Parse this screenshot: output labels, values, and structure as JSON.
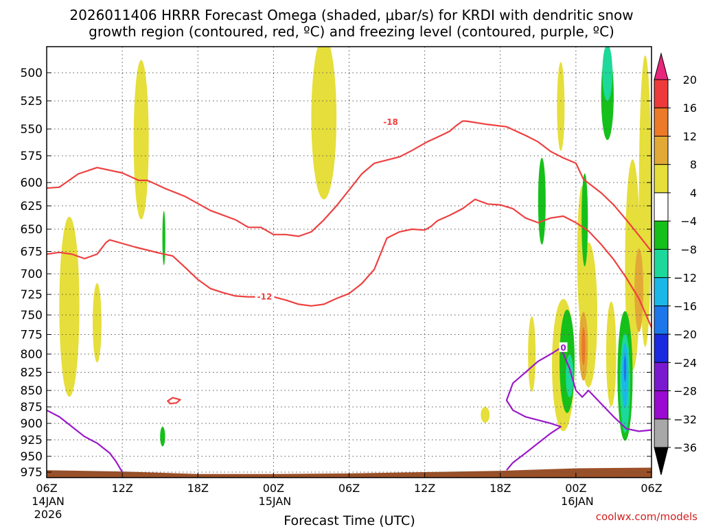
{
  "chart_data": {
    "type": "heatmap",
    "title_lines": [
      "2026011406 HRRR Forecast Omega (shaded, μbar/s) for KRDI with dendritic snow",
      "growth region (contoured, red, ºC) and freezing level (contoured, purple, ºC)"
    ],
    "xlabel": "Forecast Time (UTC)",
    "ylabel": "",
    "credit": "coolwx.com/models",
    "x_range_hours": [
      0,
      48
    ],
    "y_range_hpa": [
      488,
      990
    ],
    "y_scale": "pressure",
    "grid": true,
    "x_ticks": [
      {
        "h": 0,
        "lines": [
          "06Z",
          "14JAN",
          "2026"
        ]
      },
      {
        "h": 6,
        "lines": [
          "12Z"
        ]
      },
      {
        "h": 12,
        "lines": [
          "18Z"
        ]
      },
      {
        "h": 18,
        "lines": [
          "00Z",
          "15JAN"
        ]
      },
      {
        "h": 24,
        "lines": [
          "06Z"
        ]
      },
      {
        "h": 30,
        "lines": [
          "12Z"
        ]
      },
      {
        "h": 36,
        "lines": [
          "18Z"
        ]
      },
      {
        "h": 42,
        "lines": [
          "00Z",
          "16JAN"
        ]
      },
      {
        "h": 48,
        "lines": [
          "06Z"
        ]
      }
    ],
    "y_ticks": [
      500,
      525,
      550,
      575,
      600,
      625,
      650,
      675,
      700,
      725,
      750,
      775,
      800,
      825,
      850,
      875,
      900,
      925,
      950,
      975
    ],
    "colorbar": {
      "levels": [
        {
          "label": "20",
          "color": "#e8277c"
        },
        {
          "label": "16",
          "color": "#ee3a3a"
        },
        {
          "label": "12",
          "color": "#ec7a28"
        },
        {
          "label": "8",
          "color": "#e3a936"
        },
        {
          "label": "4",
          "color": "#e6de3a"
        },
        {
          "label": "−4",
          "color": "#ffffff"
        },
        {
          "label": "−8",
          "color": "#16c01a"
        },
        {
          "label": "−12",
          "color": "#1cd89a"
        },
        {
          "label": "−16",
          "color": "#1ab8e8"
        },
        {
          "label": "−20",
          "color": "#1c78ea"
        },
        {
          "label": "−24",
          "color": "#1a2ae0"
        },
        {
          "label": "−28",
          "color": "#7a1ad0"
        },
        {
          "label": "−32",
          "color": "#9a0ad0"
        },
        {
          "label": "−36",
          "color": "#a8a8a8"
        }
      ],
      "bottom_color": "#000000"
    },
    "colors": {
      "dgz_contour": "#ee4040",
      "freezing_contour": "#9a18c8",
      "terrain": "#9a5028",
      "grid": "#555555"
    },
    "contours": [
      {
        "label": "-18",
        "color": "dgz",
        "label_at": [
          27.3,
          544
        ],
        "closed": false,
        "points": [
          [
            0,
            606
          ],
          [
            1,
            605
          ],
          [
            2.5,
            592
          ],
          [
            4,
            586
          ],
          [
            6,
            591
          ],
          [
            7.3,
            598
          ],
          [
            8,
            598
          ],
          [
            9.5,
            607
          ],
          [
            11,
            615
          ],
          [
            13,
            630
          ],
          [
            15,
            640
          ],
          [
            16,
            648
          ],
          [
            17,
            648
          ],
          [
            18,
            656
          ],
          [
            19,
            656
          ],
          [
            20,
            658
          ],
          [
            21,
            653
          ],
          [
            22,
            640
          ],
          [
            23,
            625
          ],
          [
            24,
            608
          ],
          [
            25,
            592
          ],
          [
            26,
            582
          ],
          [
            28,
            576
          ],
          [
            29,
            570
          ],
          [
            30.2,
            562
          ],
          [
            31.3,
            556
          ],
          [
            32,
            552
          ],
          [
            32.5,
            547
          ],
          [
            33,
            543
          ],
          [
            33.3,
            543
          ],
          [
            35,
            546
          ],
          [
            36.5,
            548
          ],
          [
            38,
            556
          ],
          [
            39,
            562
          ],
          [
            40,
            571
          ],
          [
            41,
            577
          ],
          [
            42,
            582
          ],
          [
            42.6,
            597
          ],
          [
            44,
            611
          ],
          [
            45,
            624
          ],
          [
            46,
            640
          ],
          [
            47,
            657
          ],
          [
            48,
            675
          ]
        ]
      },
      {
        "label": "-12",
        "color": "dgz",
        "label_at": [
          17.3,
          728
        ],
        "closed": false,
        "points": [
          [
            0,
            678
          ],
          [
            1,
            676
          ],
          [
            2,
            678
          ],
          [
            3,
            683
          ],
          [
            4,
            678
          ],
          [
            4.7,
            665
          ],
          [
            5,
            662
          ],
          [
            7,
            670
          ],
          [
            9,
            677
          ],
          [
            10,
            680
          ],
          [
            11,
            693
          ],
          [
            12,
            707
          ],
          [
            13,
            718
          ],
          [
            14,
            723
          ],
          [
            15,
            727
          ],
          [
            16,
            728
          ],
          [
            18,
            728
          ],
          [
            19,
            732
          ],
          [
            20,
            737
          ],
          [
            21,
            739
          ],
          [
            22,
            737
          ],
          [
            23,
            730
          ],
          [
            24,
            724
          ],
          [
            25,
            712
          ],
          [
            26,
            695
          ],
          [
            27,
            660
          ],
          [
            28,
            653
          ],
          [
            29,
            650
          ],
          [
            30,
            651
          ],
          [
            30.5,
            647
          ],
          [
            31,
            641
          ],
          [
            32,
            635
          ],
          [
            33,
            628
          ],
          [
            34,
            618
          ],
          [
            35,
            623
          ],
          [
            36,
            624
          ],
          [
            37,
            628
          ],
          [
            38,
            638
          ],
          [
            39,
            643
          ],
          [
            40,
            638
          ],
          [
            41,
            636
          ],
          [
            42,
            643
          ],
          [
            43,
            652
          ],
          [
            44,
            667
          ],
          [
            45,
            684
          ],
          [
            46,
            705
          ],
          [
            47,
            730
          ],
          [
            48,
            766
          ]
        ]
      },
      {
        "label": "",
        "color": "dgz",
        "closed": true,
        "points": [
          [
            9.6,
            866
          ],
          [
            10.0,
            861
          ],
          [
            10.6,
            864
          ],
          [
            10.3,
            869
          ],
          [
            9.8,
            870
          ]
        ]
      },
      {
        "label": "0",
        "color": "freezing",
        "label_at": [
          41,
          792
        ],
        "closed": false,
        "points": [
          [
            0,
            880
          ],
          [
            1,
            890
          ],
          [
            2,
            905
          ],
          [
            3,
            920
          ],
          [
            4,
            930
          ],
          [
            5,
            945
          ],
          [
            5.5,
            958
          ],
          [
            6,
            975
          ]
        ]
      },
      {
        "label": "",
        "color": "freezing",
        "closed": false,
        "points": [
          [
            36.5,
            972
          ],
          [
            37,
            960
          ],
          [
            38,
            945
          ],
          [
            39,
            930
          ],
          [
            40,
            915
          ],
          [
            40.8,
            905
          ],
          [
            40,
            900
          ],
          [
            39,
            895
          ],
          [
            38,
            890
          ],
          [
            37,
            880
          ],
          [
            36.5,
            865
          ],
          [
            37,
            840
          ],
          [
            38,
            825
          ],
          [
            39,
            810
          ],
          [
            40,
            800
          ],
          [
            40.8,
            792
          ],
          [
            41.5,
            820
          ],
          [
            42,
            850
          ],
          [
            42.5,
            860
          ],
          [
            43,
            850
          ],
          [
            44,
            870
          ],
          [
            45,
            890
          ],
          [
            46,
            908
          ],
          [
            47,
            912
          ],
          [
            48,
            910
          ]
        ]
      }
    ],
    "omega_patches": [
      {
        "level": "4",
        "cx": 1.8,
        "cy": 740,
        "rx": 0.8,
        "ry": 110
      },
      {
        "level": "4",
        "cx": 4.0,
        "cy": 760,
        "rx": 0.35,
        "ry": 50
      },
      {
        "level": "4",
        "cx": 7.5,
        "cy": 560,
        "rx": 0.6,
        "ry": 75
      },
      {
        "level": "4",
        "cx": 22.0,
        "cy": 540,
        "rx": 1.0,
        "ry": 75
      },
      {
        "level": "4",
        "cx": 34.8,
        "cy": 887,
        "rx": 0.35,
        "ry": 12
      },
      {
        "level": "4",
        "cx": 38.5,
        "cy": 800,
        "rx": 0.3,
        "ry": 50
      },
      {
        "level": "4",
        "cx": 40.8,
        "cy": 530,
        "rx": 0.3,
        "ry": 40
      },
      {
        "level": "4",
        "cx": 41.0,
        "cy": 815,
        "rx": 0.9,
        "ry": 90
      },
      {
        "level": "4",
        "cx": 42.5,
        "cy": 680,
        "rx": 0.4,
        "ry": 80
      },
      {
        "level": "4",
        "cx": 43.0,
        "cy": 750,
        "rx": 0.7,
        "ry": 90
      },
      {
        "level": "4",
        "cx": 44.8,
        "cy": 800,
        "rx": 0.4,
        "ry": 70
      },
      {
        "level": "4",
        "cx": 46.5,
        "cy": 690,
        "rx": 0.6,
        "ry": 120
      },
      {
        "level": "4",
        "cx": 47.5,
        "cy": 620,
        "rx": 0.5,
        "ry": 150
      },
      {
        "level": "8",
        "cx": 42.6,
        "cy": 790,
        "rx": 0.35,
        "ry": 45
      },
      {
        "level": "8",
        "cx": 47.0,
        "cy": 720,
        "rx": 0.35,
        "ry": 50
      },
      {
        "level": "12",
        "cx": 42.6,
        "cy": 790,
        "rx": 0.15,
        "ry": 25
      },
      {
        "level": "−8",
        "cx": 9.3,
        "cy": 660,
        "rx": 0.12,
        "ry": 30
      },
      {
        "level": "−8",
        "cx": 9.2,
        "cy": 920,
        "rx": 0.2,
        "ry": 15
      },
      {
        "level": "−8",
        "cx": 39.3,
        "cy": 620,
        "rx": 0.3,
        "ry": 45
      },
      {
        "level": "−8",
        "cx": 41.3,
        "cy": 810,
        "rx": 0.6,
        "ry": 70
      },
      {
        "level": "−8",
        "cx": 42.7,
        "cy": 640,
        "rx": 0.25,
        "ry": 50
      },
      {
        "level": "−8",
        "cx": 44.5,
        "cy": 520,
        "rx": 0.5,
        "ry": 40
      },
      {
        "level": "−8",
        "cx": 45.9,
        "cy": 830,
        "rx": 0.6,
        "ry": 90
      },
      {
        "level": "−12",
        "cx": 44.5,
        "cy": 500,
        "rx": 0.4,
        "ry": 25
      },
      {
        "level": "−12",
        "cx": 45.9,
        "cy": 840,
        "rx": 0.4,
        "ry": 70
      },
      {
        "level": "−12",
        "cx": 41.5,
        "cy": 830,
        "rx": 0.3,
        "ry": 30
      },
      {
        "level": "−16",
        "cx": 45.9,
        "cy": 830,
        "rx": 0.25,
        "ry": 45
      },
      {
        "level": "−20",
        "cx": 45.9,
        "cy": 820,
        "rx": 0.1,
        "ry": 18
      }
    ],
    "terrain_top_hpa": [
      [
        0,
        972
      ],
      [
        6,
        974
      ],
      [
        9,
        976
      ],
      [
        12,
        978
      ],
      [
        18,
        978
      ],
      [
        24,
        977
      ],
      [
        30,
        975
      ],
      [
        36,
        973
      ],
      [
        42,
        969
      ],
      [
        48,
        968
      ]
    ]
  }
}
